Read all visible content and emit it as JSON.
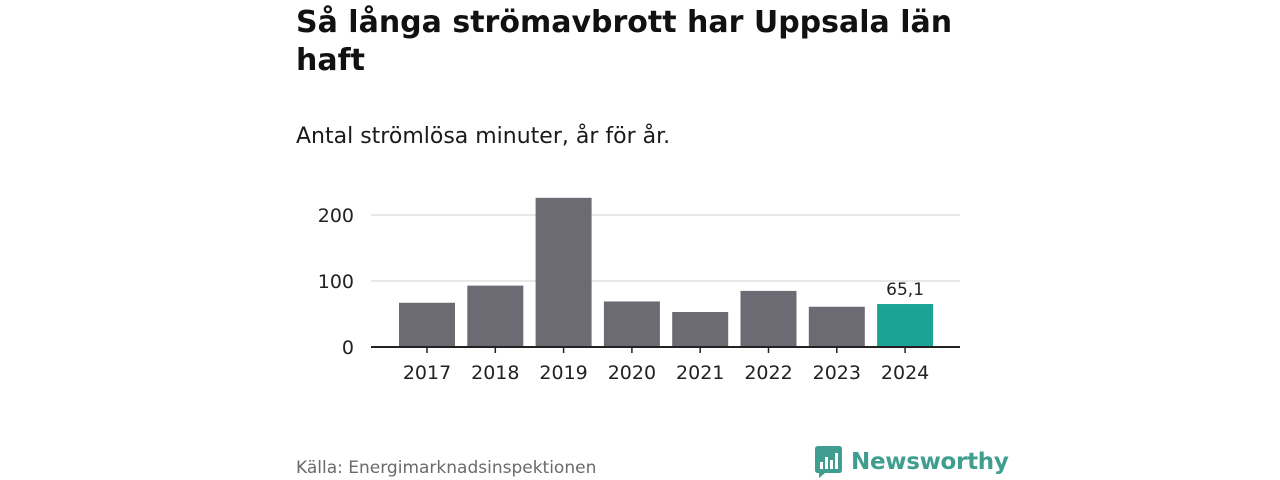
{
  "title": "Så långa strömavbrott har Uppsala län haft",
  "subtitle": "Antal strömlösa minuter, år för år.",
  "chart_data": {
    "type": "bar",
    "title": "Så långa strömavbrott har Uppsala län haft",
    "subtitle": "Antal strömlösa minuter, år för år.",
    "categories": [
      "2017",
      "2018",
      "2019",
      "2020",
      "2021",
      "2022",
      "2023",
      "2024"
    ],
    "values": [
      67,
      93,
      226,
      69,
      53,
      85,
      61,
      65.1
    ],
    "highlight_index": 7,
    "highlight_label": "65,1",
    "yticks": [
      0,
      100,
      200
    ],
    "ylim": [
      0,
      230
    ],
    "xlabel": "",
    "ylabel": "",
    "grid": true,
    "colors": {
      "bar": "#6c6b73",
      "highlight": "#1aa396",
      "grid": "#d9d9d9",
      "axis": "#222222"
    }
  },
  "footer": {
    "source": "Källa: Energimarknadsinspektionen",
    "brand": "Newsworthy",
    "brand_icon": "bar-chart-logo-icon",
    "brand_color": "#3f9e8f"
  }
}
